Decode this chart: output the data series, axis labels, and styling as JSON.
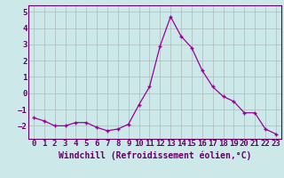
{
  "x": [
    0,
    1,
    2,
    3,
    4,
    5,
    6,
    7,
    8,
    9,
    10,
    11,
    12,
    13,
    14,
    15,
    16,
    17,
    18,
    19,
    20,
    21,
    22,
    23
  ],
  "y": [
    -1.5,
    -1.7,
    -2.0,
    -2.0,
    -1.8,
    -1.8,
    -2.1,
    -2.3,
    -2.2,
    -1.9,
    -0.7,
    0.4,
    2.9,
    4.7,
    3.5,
    2.8,
    1.4,
    0.4,
    -0.2,
    -0.5,
    -1.2,
    -1.2,
    -2.2,
    -2.5
  ],
  "line_color": "#990099",
  "marker": "+",
  "bg_color": "#cce8e8",
  "grid_color": "#aabbbb",
  "xlabel": "Windchill (Refroidissement éolien,°C)",
  "ylim": [
    -2.8,
    5.4
  ],
  "xlim": [
    -0.5,
    23.5
  ],
  "yticks": [
    -2,
    -1,
    0,
    1,
    2,
    3,
    4,
    5
  ],
  "xticks": [
    0,
    1,
    2,
    3,
    4,
    5,
    6,
    7,
    8,
    9,
    10,
    11,
    12,
    13,
    14,
    15,
    16,
    17,
    18,
    19,
    20,
    21,
    22,
    23
  ],
  "axis_color": "#660066",
  "font_size": 6.5,
  "xlabel_fontsize": 7.0
}
